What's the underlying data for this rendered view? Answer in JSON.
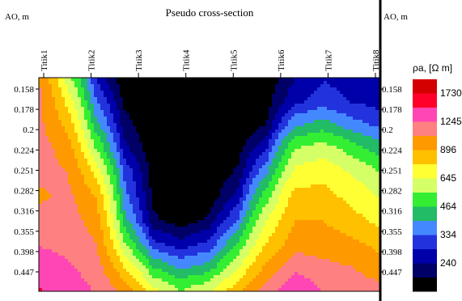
{
  "chart_data": {
    "type": "heatmap",
    "title": "Pseudo cross-section",
    "ylabel_left": "AO, m",
    "ylabel_right": "AO, m",
    "legend_title": "ρa, [Ω m]",
    "stations": [
      "Titik1",
      "Titik2",
      "Titik3",
      "Titik4",
      "Titik5",
      "Titik6",
      "Titik7",
      "Titik8"
    ],
    "y_ticks": [
      "0.158",
      "0.178",
      "0.2",
      "0.224",
      "0.251",
      "0.282",
      "0.316",
      "0.355",
      "0.398",
      "0.447"
    ],
    "legend": {
      "colors": [
        "#d40000",
        "#ff0028",
        "#ff46b4",
        "#ff8080",
        "#ff9900",
        "#ffc000",
        "#ffff33",
        "#d4ff66",
        "#33ee33",
        "#22bb66",
        "#4488ff",
        "#2233dd",
        "#0000aa",
        "#000066",
        "#000000"
      ],
      "labels": [
        "1730",
        "1245",
        "896",
        "645",
        "464",
        "334",
        "240"
      ]
    },
    "values": [
      [
        1250,
        700,
        330,
        200,
        200,
        200,
        200,
        200,
        210,
        280,
        330,
        310,
        300
      ],
      [
        1300,
        850,
        400,
        230,
        200,
        200,
        200,
        200,
        220,
        320,
        360,
        330,
        310
      ],
      [
        1300,
        1000,
        500,
        260,
        200,
        200,
        200,
        200,
        240,
        450,
        500,
        420,
        380
      ],
      [
        1350,
        1150,
        650,
        300,
        210,
        200,
        200,
        220,
        330,
        650,
        700,
        600,
        500
      ],
      [
        1300,
        1250,
        850,
        380,
        220,
        200,
        200,
        250,
        450,
        800,
        850,
        750,
        650
      ],
      [
        1200,
        1300,
        1050,
        420,
        230,
        200,
        210,
        300,
        600,
        950,
        950,
        850,
        750
      ],
      [
        1350,
        1350,
        1150,
        500,
        250,
        210,
        250,
        400,
        750,
        1050,
        1050,
        950,
        850
      ],
      [
        1450,
        1400,
        1250,
        650,
        350,
        300,
        350,
        550,
        900,
        1150,
        1150,
        1100,
        1000
      ],
      [
        1600,
        1500,
        1350,
        900,
        550,
        450,
        500,
        750,
        1100,
        1400,
        1300,
        1250,
        1150
      ],
      [
        1750,
        1650,
        1450,
        1200,
        800,
        650,
        750,
        1000,
        1350,
        1700,
        1450,
        1350,
        1300
      ]
    ]
  }
}
